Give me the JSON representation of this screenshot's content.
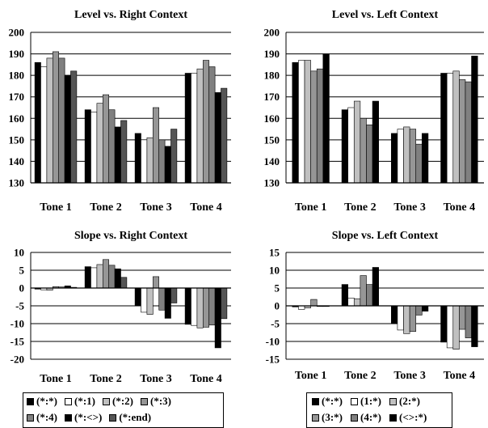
{
  "colors": {
    "black": "#000000",
    "white": "#ffffff",
    "light_gray": "#c0c0c0",
    "mid_gray": "#969696",
    "dark_gray": "#808080",
    "charcoal": "#555555"
  },
  "chart_data": [
    {
      "type": "bar",
      "title": "Level vs. Right Context",
      "categories": [
        "Tone 1",
        "Tone 2",
        "Tone 3",
        "Tone 4"
      ],
      "ylim": [
        130,
        200
      ],
      "yticks": [
        "130",
        "140",
        "150",
        "160",
        "170",
        "180",
        "190",
        "200"
      ],
      "grid": true,
      "series": [
        {
          "name": "(*:*)",
          "color": "#000000",
          "values": [
            186,
            164,
            153,
            181
          ]
        },
        {
          "name": "(*:1)",
          "color": "#ffffff",
          "values": [
            184,
            163,
            150,
            181
          ]
        },
        {
          "name": "(*:2)",
          "color": "#c0c0c0",
          "values": [
            188,
            167,
            151,
            183
          ]
        },
        {
          "name": "(*:3)",
          "color": "#969696",
          "values": [
            191,
            171,
            165,
            187
          ]
        },
        {
          "name": "(*:4)",
          "color": "#808080",
          "values": [
            188,
            164,
            150,
            184
          ]
        },
        {
          "name": "(*:<>)",
          "color": "#000000",
          "values": [
            180,
            156,
            147,
            172
          ]
        },
        {
          "name": "(*:end)",
          "color": "#555555",
          "values": [
            182,
            159,
            155,
            174
          ]
        }
      ]
    },
    {
      "type": "bar",
      "title": "Level vs. Left Context",
      "categories": [
        "Tone 1",
        "Tone 2",
        "Tone 3",
        "Tone 4"
      ],
      "ylim": [
        130,
        200
      ],
      "yticks": [
        "130",
        "140",
        "150",
        "160",
        "170",
        "180",
        "190",
        "200"
      ],
      "grid": true,
      "series": [
        {
          "name": "(*:*)",
          "color": "#000000",
          "values": [
            186,
            164,
            153,
            181
          ]
        },
        {
          "name": "(1:*)",
          "color": "#ffffff",
          "values": [
            187,
            165,
            155,
            181
          ]
        },
        {
          "name": "(2:*)",
          "color": "#c0c0c0",
          "values": [
            187,
            168,
            156,
            182
          ]
        },
        {
          "name": "(3:*)",
          "color": "#969696",
          "values": [
            182,
            160,
            155,
            178
          ]
        },
        {
          "name": "(4:*)",
          "color": "#808080",
          "values": [
            183,
            157,
            148,
            177
          ]
        },
        {
          "name": "(<>:*)",
          "color": "#000000",
          "values": [
            190,
            168,
            153,
            189
          ]
        }
      ]
    },
    {
      "type": "bar",
      "title": "Slope vs. Right Context",
      "categories": [
        "Tone 1",
        "Tone 2",
        "Tone 3",
        "Tone 4"
      ],
      "ylim": [
        -20,
        10
      ],
      "yticks": [
        "-20",
        "-15",
        "-10",
        "-5",
        "0",
        "5",
        "10"
      ],
      "grid": true,
      "series": [
        {
          "name": "(*:*)",
          "color": "#000000",
          "values": [
            -0.3,
            6.0,
            -5.0,
            -10.2
          ]
        },
        {
          "name": "(*:1)",
          "color": "#ffffff",
          "values": [
            -0.5,
            5.7,
            -6.8,
            -10.5
          ]
        },
        {
          "name": "(*:2)",
          "color": "#c0c0c0",
          "values": [
            -0.6,
            6.6,
            -7.4,
            -11.2
          ]
        },
        {
          "name": "(*:3)",
          "color": "#969696",
          "values": [
            0.4,
            8.0,
            3.2,
            -11.0
          ]
        },
        {
          "name": "(*:4)",
          "color": "#808080",
          "values": [
            0.3,
            6.4,
            -6.2,
            -10.4
          ]
        },
        {
          "name": "(*:<>)",
          "color": "#000000",
          "values": [
            0.6,
            5.4,
            -8.5,
            -16.8
          ]
        },
        {
          "name": "(*:end)",
          "color": "#555555",
          "values": [
            0.2,
            3.0,
            -4.2,
            -8.6
          ]
        }
      ]
    },
    {
      "type": "bar",
      "title": "Slope vs. Left Context",
      "categories": [
        "Tone 1",
        "Tone 2",
        "Tone 3",
        "Tone 4"
      ],
      "ylim": [
        -15,
        15
      ],
      "yticks": [
        "-15",
        "-10",
        "-5",
        "0",
        "5",
        "10",
        "15"
      ],
      "grid": true,
      "series": [
        {
          "name": "(*:*)",
          "color": "#000000",
          "values": [
            -0.3,
            6.0,
            -5.0,
            -10.2
          ]
        },
        {
          "name": "(1:*)",
          "color": "#ffffff",
          "values": [
            -1.0,
            2.2,
            -6.8,
            -11.8
          ]
        },
        {
          "name": "(2:*)",
          "color": "#c0c0c0",
          "values": [
            -0.6,
            2.0,
            -7.8,
            -12.2
          ]
        },
        {
          "name": "(3:*)",
          "color": "#969696",
          "values": [
            1.8,
            8.5,
            -7.2,
            -6.6
          ]
        },
        {
          "name": "(4:*)",
          "color": "#808080",
          "values": [
            0.0,
            6.0,
            -2.6,
            -9.0
          ]
        },
        {
          "name": "(<>:*)",
          "color": "#000000",
          "values": [
            0.0,
            10.8,
            -1.5,
            -11.5
          ]
        }
      ]
    }
  ],
  "legends": {
    "right_context": [
      [
        "(*:*)",
        "(*:1)",
        "(*:2)",
        "(*:3)"
      ],
      [
        "(*:4)",
        "(*:<>)",
        "(*:end)"
      ]
    ],
    "left_context": [
      [
        "(*:*)",
        "(1:*)",
        "(2:*)"
      ],
      [
        "(3:*)",
        "(4:*)",
        "(<>:*)"
      ]
    ]
  }
}
